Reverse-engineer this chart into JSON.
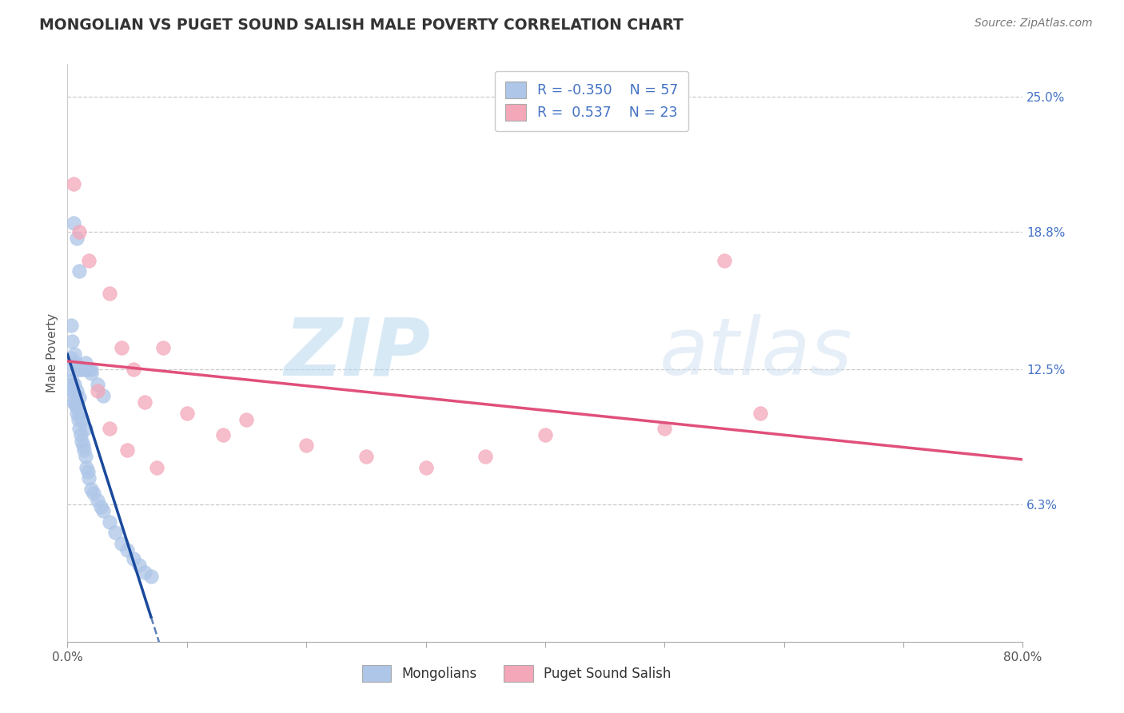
{
  "title": "MONGOLIAN VS PUGET SOUND SALISH MALE POVERTY CORRELATION CHART",
  "source": "Source: ZipAtlas.com",
  "ylabel": "Male Poverty",
  "xlim": [
    0.0,
    80.0
  ],
  "ylim": [
    0.0,
    26.5
  ],
  "ytick_vals": [
    6.3,
    12.5,
    18.8,
    25.0
  ],
  "ytick_labels": [
    "6.3%",
    "12.5%",
    "18.8%",
    "25.0%"
  ],
  "mongolian_color": "#aec6e8",
  "salish_color": "#f4a7b9",
  "mongolian_line_color": "#1a4a9c",
  "salish_line_color": "#e0507a",
  "background_color": "#ffffff",
  "watermark_text": "ZIP",
  "watermark_text2": "atlas",
  "r_mongolian": -0.35,
  "r_salish": 0.537,
  "n_mongolian": 57,
  "n_salish": 23,
  "mongolian_x": [
    0.5,
    0.8,
    1.0,
    0.3,
    0.4,
    0.6,
    0.7,
    0.2,
    0.9,
    1.1,
    1.3,
    1.5,
    1.8,
    2.0,
    0.4,
    0.5,
    0.6,
    0.7,
    0.8,
    0.9,
    1.0,
    1.1,
    1.2,
    1.3,
    1.4,
    1.5,
    1.6,
    1.7,
    1.8,
    2.0,
    2.2,
    2.5,
    2.8,
    3.0,
    3.5,
    4.0,
    4.5,
    5.0,
    5.5,
    6.0,
    6.5,
    7.0,
    0.3,
    0.5,
    0.7,
    1.0,
    1.2,
    1.5,
    0.4,
    0.6,
    0.8,
    1.0,
    1.5,
    2.0,
    2.5,
    3.0,
    0.3
  ],
  "mongolian_y": [
    19.2,
    18.5,
    17.0,
    14.5,
    13.8,
    13.2,
    12.8,
    12.5,
    12.5,
    12.5,
    12.5,
    12.5,
    12.5,
    12.5,
    11.8,
    11.5,
    11.0,
    10.8,
    10.5,
    10.2,
    9.8,
    9.5,
    9.2,
    9.0,
    8.8,
    8.5,
    8.0,
    7.8,
    7.5,
    7.0,
    6.8,
    6.5,
    6.2,
    6.0,
    5.5,
    5.0,
    4.5,
    4.2,
    3.8,
    3.5,
    3.2,
    3.0,
    11.5,
    11.0,
    10.8,
    10.5,
    10.2,
    9.8,
    12.0,
    11.8,
    11.5,
    11.2,
    12.8,
    12.3,
    11.8,
    11.3,
    13.0
  ],
  "salish_x": [
    0.5,
    1.0,
    1.8,
    3.5,
    4.5,
    5.5,
    6.5,
    8.0,
    10.0,
    13.0,
    15.0,
    20.0,
    25.0,
    30.0,
    35.0,
    40.0,
    50.0,
    58.0,
    2.5,
    3.5,
    5.0,
    7.5,
    55.0
  ],
  "salish_y": [
    21.0,
    18.8,
    17.5,
    16.0,
    13.5,
    12.5,
    11.0,
    13.5,
    10.5,
    9.5,
    10.2,
    9.0,
    8.5,
    8.0,
    8.5,
    9.5,
    9.8,
    10.5,
    11.5,
    9.8,
    8.8,
    8.0,
    17.5
  ]
}
